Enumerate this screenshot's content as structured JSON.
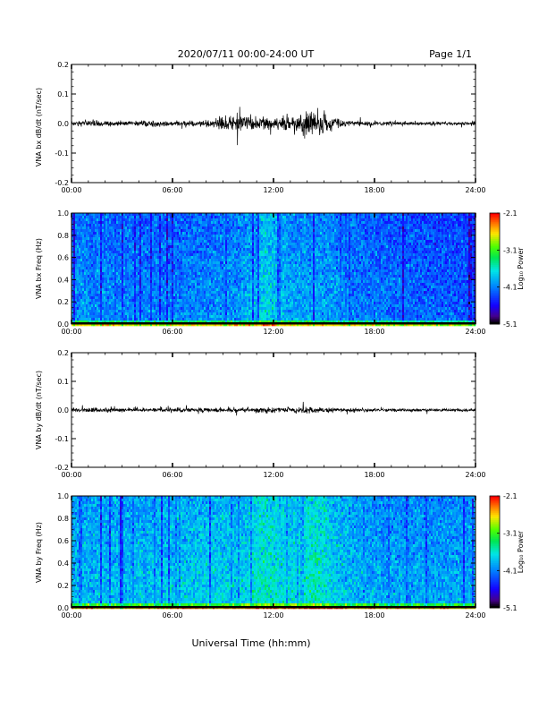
{
  "header": {
    "title": "2020/07/11  00:00-24:00 UT",
    "page": "Page 1/1"
  },
  "xlabel": "Universal Time (hh:mm)",
  "chart_data": [
    {
      "type": "line",
      "ylabel": "VNA bx dB/dt (nT/sec)",
      "xlim": [
        0,
        24
      ],
      "ylim": [
        -0.2,
        0.2
      ],
      "xticks": [
        "00:00",
        "06:00",
        "12:00",
        "18:00",
        "24:00"
      ],
      "yticks": [
        "0.2",
        "0.1",
        "0.0",
        "-0.1",
        "-0.2"
      ],
      "envelope": {
        "x_hours": [
          0,
          1,
          2,
          3,
          4,
          5,
          6,
          7,
          8,
          9,
          10,
          11,
          12,
          13,
          14,
          15,
          16,
          17,
          18,
          19,
          20,
          21,
          22,
          23,
          24
        ],
        "amplitude": [
          0.007,
          0.012,
          0.008,
          0.007,
          0.008,
          0.011,
          0.01,
          0.009,
          0.01,
          0.022,
          0.028,
          0.022,
          0.018,
          0.03,
          0.042,
          0.038,
          0.012,
          0.009,
          0.007,
          0.007,
          0.006,
          0.006,
          0.006,
          0.006,
          0.006
        ]
      }
    },
    {
      "type": "heatmap",
      "ylabel": "VNA bx Freq (Hz)",
      "xlim": [
        0,
        24
      ],
      "ylim": [
        0.0,
        1.0
      ],
      "xticks": [
        "00:00",
        "06:00",
        "12:00",
        "18:00",
        "24:00"
      ],
      "yticks": [
        "1.0",
        "0.8",
        "0.6",
        "0.4",
        "0.2",
        "0.0"
      ],
      "colorbar": {
        "label": "Log₁₀ Power",
        "ticks": [
          "-2.1",
          "-3.1",
          "-4.1",
          "-5.1"
        ],
        "range": [
          -5.1,
          -2.1
        ]
      },
      "mean_log_power": {
        "x_hours": [
          0,
          2,
          4,
          6,
          8,
          10,
          11.5,
          13,
          15,
          17,
          19,
          21,
          24
        ],
        "value": [
          -4.0,
          -4.05,
          -4.1,
          -4.1,
          -4.05,
          -4.0,
          -3.7,
          -3.95,
          -3.95,
          -4.1,
          -4.15,
          -4.2,
          -4.25
        ]
      }
    },
    {
      "type": "line",
      "ylabel": "VNA by dB/dt (nT/sec)",
      "xlim": [
        0,
        24
      ],
      "ylim": [
        -0.2,
        0.2
      ],
      "xticks": [
        "00:00",
        "06:00",
        "12:00",
        "18:00",
        "24:00"
      ],
      "yticks": [
        "0.2",
        "0.1",
        "0.0",
        "-0.1",
        "-0.2"
      ],
      "envelope": {
        "x_hours": [
          0,
          1,
          2,
          3,
          4,
          5,
          6,
          7,
          8,
          9,
          10,
          11,
          12,
          13,
          14,
          15,
          16,
          17,
          18,
          19,
          20,
          21,
          22,
          23,
          24
        ],
        "amplitude": [
          0.006,
          0.009,
          0.007,
          0.006,
          0.007,
          0.007,
          0.007,
          0.007,
          0.007,
          0.008,
          0.008,
          0.008,
          0.008,
          0.009,
          0.012,
          0.01,
          0.007,
          0.006,
          0.006,
          0.006,
          0.005,
          0.005,
          0.005,
          0.005,
          0.005
        ]
      }
    },
    {
      "type": "heatmap",
      "ylabel": "VNA by Freq (Hz)",
      "xlim": [
        0,
        24
      ],
      "ylim": [
        0.0,
        1.0
      ],
      "xticks": [
        "00:00",
        "06:00",
        "12:00",
        "18:00",
        "24:00"
      ],
      "yticks": [
        "1.0",
        "0.8",
        "0.6",
        "0.4",
        "0.2",
        "0.0"
      ],
      "colorbar": {
        "label": "Log₁₀ Power",
        "ticks": [
          "-2.1",
          "-3.1",
          "-4.1",
          "-5.1"
        ],
        "range": [
          -5.1,
          -2.1
        ]
      },
      "mean_log_power": {
        "x_hours": [
          0,
          2,
          4,
          6,
          8,
          10,
          11.5,
          13,
          14.5,
          16,
          18,
          20,
          22,
          24
        ],
        "value": [
          -3.85,
          -3.85,
          -3.8,
          -3.8,
          -3.75,
          -3.75,
          -3.55,
          -3.7,
          -3.5,
          -3.8,
          -3.9,
          -3.95,
          -3.95,
          -3.9
        ]
      }
    }
  ]
}
